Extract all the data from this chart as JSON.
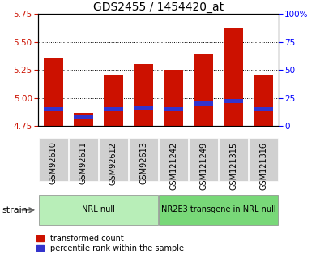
{
  "title": "GDS2455 / 1454420_at",
  "categories": [
    "GSM92610",
    "GSM92611",
    "GSM92612",
    "GSM92613",
    "GSM121242",
    "GSM121249",
    "GSM121315",
    "GSM121316"
  ],
  "red_values": [
    5.35,
    4.87,
    5.2,
    5.3,
    5.25,
    5.4,
    5.63,
    5.2
  ],
  "blue_values": [
    4.9,
    4.83,
    4.9,
    4.91,
    4.9,
    4.95,
    4.97,
    4.9
  ],
  "ylim_left": [
    4.75,
    5.75
  ],
  "ylim_right": [
    0,
    100
  ],
  "yticks_left": [
    4.75,
    5.0,
    5.25,
    5.5,
    5.75
  ],
  "yticks_right": [
    0,
    25,
    50,
    75,
    100
  ],
  "ytick_right_labels": [
    "0",
    "25",
    "50",
    "75",
    "100%"
  ],
  "groups": [
    {
      "label": "NRL null",
      "indices": [
        0,
        1,
        2,
        3
      ],
      "color": "#b8eeb8"
    },
    {
      "label": "NR2E3 transgene in NRL null",
      "indices": [
        4,
        5,
        6,
        7
      ],
      "color": "#78d878"
    }
  ],
  "bar_bottom": 4.75,
  "bar_width": 0.65,
  "red_color": "#cc1100",
  "blue_color": "#3333cc",
  "bg_color": "#ffffff",
  "xlabel_bg": "#d0d0d0",
  "strain_label": "strain",
  "legend_red": "transformed count",
  "legend_blue": "percentile rank within the sample",
  "grid_yticks": [
    5.0,
    5.25,
    5.5
  ],
  "title_fontsize": 10,
  "tick_fontsize": 7.5,
  "label_fontsize": 7
}
